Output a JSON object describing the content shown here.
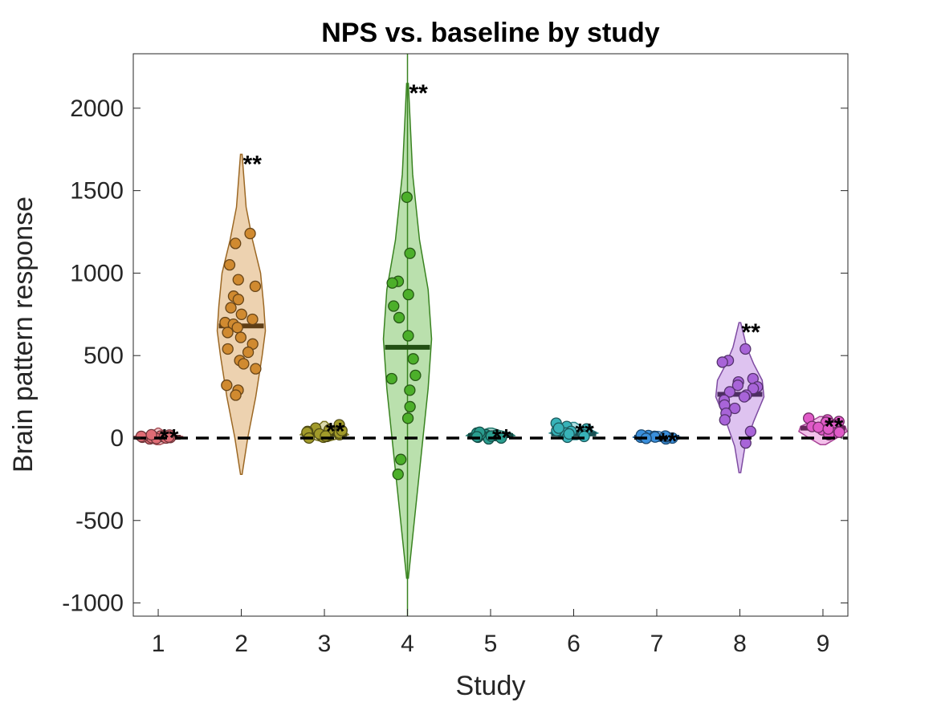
{
  "chart_data": {
    "type": "violin",
    "title": "NPS vs. baseline by study",
    "xlabel": "Study",
    "ylabel": "Brain pattern response",
    "xlim": [
      0.7,
      9.3
    ],
    "ylim": [
      -1080,
      2330
    ],
    "xticks": [
      1,
      2,
      3,
      4,
      5,
      6,
      7,
      8,
      9
    ],
    "yticks": [
      -1000,
      -500,
      0,
      500,
      1000,
      1500,
      2000
    ],
    "baseline": 0,
    "significance_label": "**",
    "studies": [
      {
        "study": 1,
        "color": "#e06c75",
        "mean": 5,
        "significance": "**",
        "violin": [
          [
            -40,
            2
          ],
          [
            -20,
            10
          ],
          [
            0,
            22
          ],
          [
            10,
            24
          ],
          [
            20,
            16
          ],
          [
            40,
            6
          ],
          [
            60,
            1
          ]
        ],
        "points": [
          -5,
          2,
          8,
          15,
          5,
          12,
          -3,
          10,
          20,
          3,
          7,
          0,
          18,
          6
        ]
      },
      {
        "study": 2,
        "color": "#d08a30",
        "mean": 680,
        "significance": "**",
        "violin": [
          [
            -220,
            1
          ],
          [
            0,
            8
          ],
          [
            250,
            18
          ],
          [
            500,
            26
          ],
          [
            650,
            30
          ],
          [
            800,
            28
          ],
          [
            1000,
            24
          ],
          [
            1200,
            14
          ],
          [
            1400,
            6
          ],
          [
            1720,
            1
          ]
        ],
        "points": [
          1240,
          1180,
          1050,
          960,
          920,
          860,
          840,
          790,
          720,
          700,
          690,
          670,
          640,
          570,
          540,
          520,
          470,
          450,
          420,
          320,
          290,
          260,
          610,
          750
        ]
      },
      {
        "study": 3,
        "color": "#a19a2a",
        "mean": 25,
        "significance": "**",
        "violin": [
          [
            -20,
            4
          ],
          [
            0,
            18
          ],
          [
            20,
            28
          ],
          [
            40,
            24
          ],
          [
            60,
            14
          ],
          [
            80,
            6
          ],
          [
            100,
            2
          ]
        ],
        "points": [
          80,
          60,
          40,
          35,
          20,
          15,
          10,
          5,
          30,
          45,
          25,
          0,
          50,
          12
        ]
      },
      {
        "study": 4,
        "color": "#4caf2a",
        "mean": 550,
        "significance": "**",
        "violin": [
          [
            -850,
            1
          ],
          [
            -600,
            6
          ],
          [
            -300,
            12
          ],
          [
            0,
            18
          ],
          [
            300,
            24
          ],
          [
            600,
            28
          ],
          [
            900,
            24
          ],
          [
            1200,
            14
          ],
          [
            1600,
            6
          ],
          [
            2150,
            1
          ]
        ],
        "points": [
          1460,
          1120,
          950,
          940,
          870,
          800,
          730,
          620,
          480,
          380,
          360,
          290,
          190,
          120,
          -130,
          -220
        ]
      },
      {
        "study": 5,
        "color": "#2a9d8f",
        "mean": 15,
        "significance": "**",
        "violin": [
          [
            -15,
            4
          ],
          [
            0,
            16
          ],
          [
            15,
            26
          ],
          [
            30,
            22
          ],
          [
            45,
            10
          ],
          [
            60,
            2
          ]
        ],
        "points": [
          30,
          20,
          10,
          5,
          -5,
          15,
          25,
          0,
          35,
          12,
          8
        ]
      },
      {
        "study": 6,
        "color": "#38b2b8",
        "mean": 25,
        "significance": "**",
        "violin": [
          [
            -10,
            4
          ],
          [
            10,
            18
          ],
          [
            30,
            30
          ],
          [
            50,
            22
          ],
          [
            70,
            10
          ],
          [
            95,
            2
          ]
        ],
        "points": [
          90,
          70,
          55,
          40,
          30,
          20,
          10,
          5,
          45,
          25,
          60
        ]
      },
      {
        "study": 7,
        "color": "#3a8fdc",
        "mean": 5,
        "significance": "**",
        "violin": [
          [
            -20,
            4
          ],
          [
            -5,
            16
          ],
          [
            5,
            26
          ],
          [
            15,
            20
          ],
          [
            30,
            8
          ],
          [
            40,
            2
          ]
        ],
        "points": [
          15,
          10,
          5,
          0,
          -5,
          8,
          12,
          3,
          18,
          6,
          -2
        ]
      },
      {
        "study": 8,
        "color": "#a864d8",
        "mean": 265,
        "significance": "**",
        "violin": [
          [
            -210,
            1
          ],
          [
            -50,
            6
          ],
          [
            100,
            16
          ],
          [
            250,
            28
          ],
          [
            350,
            26
          ],
          [
            450,
            16
          ],
          [
            550,
            8
          ],
          [
            700,
            1
          ]
        ],
        "points": [
          540,
          470,
          460,
          360,
          340,
          310,
          300,
          280,
          260,
          230,
          200,
          180,
          150,
          110,
          40,
          -30,
          250,
          320
        ]
      },
      {
        "study": 9,
        "color": "#e05ac8",
        "mean": 60,
        "significance": "**",
        "violin": [
          [
            -40,
            3
          ],
          [
            0,
            16
          ],
          [
            40,
            28
          ],
          [
            70,
            26
          ],
          [
            100,
            14
          ],
          [
            130,
            4
          ]
        ],
        "points": [
          120,
          110,
          100,
          90,
          80,
          70,
          60,
          50,
          40,
          30,
          20,
          95,
          65,
          35,
          55
        ]
      }
    ]
  }
}
